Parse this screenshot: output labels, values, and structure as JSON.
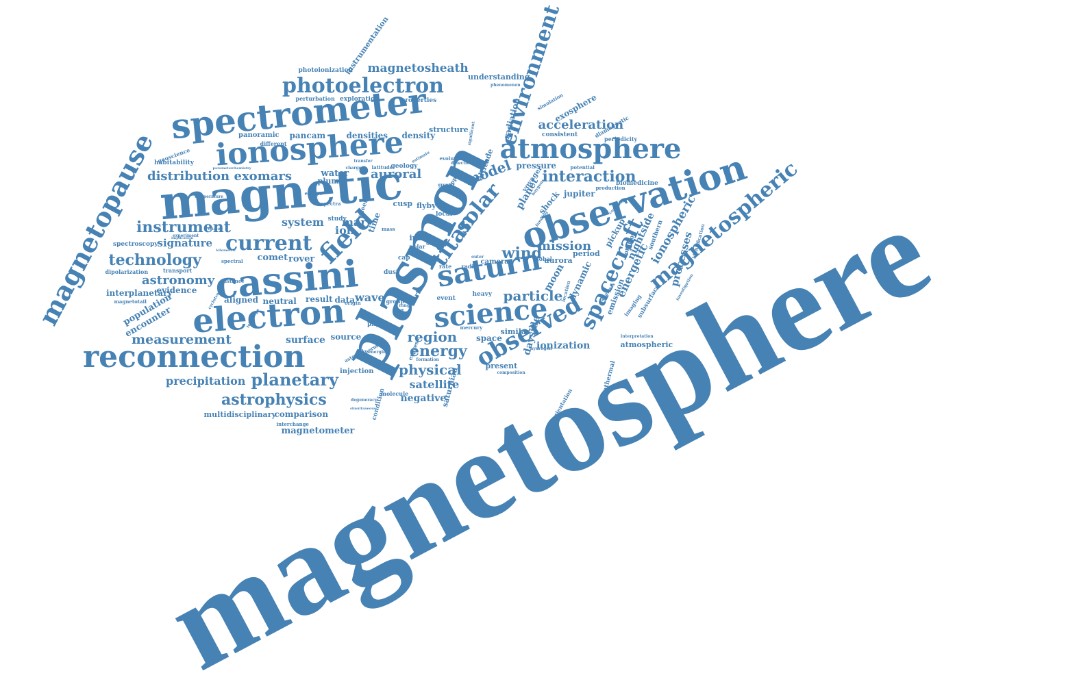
{
  "theme": {
    "word_color": "#4682b4",
    "background": "#ffffff"
  },
  "words": {
    "magnetosphere": "magnetosphere",
    "plasmon": "plasmon",
    "magnetic": "magnetic",
    "observation": "observation",
    "spectrometer": "spectrometer",
    "ionosphere": "ionosphere",
    "atmosphere": "atmosphere",
    "cassini": "cassini",
    "electron": "electron",
    "reconnection": "reconnection",
    "saturn": "saturn",
    "science": "science",
    "magnetopause": "magnetopause",
    "magnetospheric": "magnetospheric",
    "environment": "environment",
    "photoelectron": "photoelectron",
    "current": "current",
    "field": "field",
    "observed": "observed",
    "spacecraft": "spacecraft",
    "titan": "titan",
    "ionospheric": "ionospheric",
    "solar": "solar",
    "magnetosheath": "magnetosheath",
    "distribution": "distribution",
    "exomars": "exomars",
    "instrument": "instrument",
    "technology": "technology",
    "astronomy": "astronomy",
    "measurement": "measurement",
    "planetary": "planetary",
    "astrophysics": "astrophysics",
    "precipitation": "precipitation",
    "interaction": "interaction",
    "acceleration": "acceleration",
    "mission": "mission",
    "wind": "wind",
    "particle": "particle",
    "energy": "energy",
    "region": "region",
    "physical": "physical",
    "model": "model",
    "processes": "processes",
    "signature": "signature",
    "system": "system",
    "auroral": "auroral",
    "ion": "ion",
    "mar": "mar",
    "wave": "wave",
    "energetic": "energetic",
    "nightside": "nightside",
    "interplanetary": "interplanetary",
    "population": "population",
    "encounter": "encounter",
    "evidence": "evidence",
    "aligned": "aligned",
    "neutral": "neutral",
    "result": "result",
    "data": "data",
    "surface": "surface",
    "source": "source",
    "satellite": "satellite",
    "negative": "negative",
    "multidisciplinary": "multidisciplinary",
    "comparison": "comparison",
    "magnetometer": "magnetometer",
    "interchange": "interchange",
    "injection": "injection",
    "ionization": "ionization",
    "dayside": "dayside",
    "space": "space",
    "similar": "similar",
    "present": "present",
    "jupiter": "jupiter",
    "biomedicine": "biomedicine",
    "atmospheric": "atmospheric",
    "exosphere": "exosphere",
    "consistent": "consistent",
    "understanding": "understanding",
    "phenomenon": "phenomenon",
    "periodicity": "periodicity",
    "diagnamagnetic": "diamagnetic",
    "simulation": "simulation",
    "radiation": "radiation",
    "pressure": "pressure",
    "potential": "potential",
    "production": "production",
    "photoionization": "photoionization",
    "instrumentation": "instrumentation",
    "perturbation": "perturbation",
    "exploration": "exploration",
    "properties": "properties",
    "panoramic": "panoramic",
    "pancam": "pancam",
    "densities": "densities",
    "density": "density",
    "structure": "structure",
    "different": "different",
    "geoscience": "geoscience",
    "habitability": "habitability",
    "water": "water",
    "plume": "plume",
    "geology": "geology",
    "evolution": "evolution",
    "detection": "detection",
    "growth": "growth",
    "upper": "upper",
    "altitude": "altitude",
    "voyager": "voyager",
    "planet": "planet",
    "shock": "shock",
    "cusp": "cusp",
    "flyby": "flyby",
    "local": "local",
    "inner": "inner",
    "orbit": "orbit",
    "polar": "polar",
    "cap": "cap",
    "rate": "rate",
    "radio": "radio",
    "camera": "camera",
    "global": "global",
    "aurora": "aurora",
    "period": "period",
    "moon": "moon",
    "dynamic": "dynamic",
    "emission": "emission",
    "imaging": "imaging",
    "pickup": "pickup",
    "rotation": "rotation",
    "southern": "southern",
    "subsurface": "subsurface",
    "identification": "identification",
    "investigation": "investigation",
    "interpretation": "interpretation",
    "suprathermal": "suprathermal",
    "orientation": "orientation",
    "saturnian": "saturnian",
    "condition": "condition",
    "molecule": "molecule",
    "event": "event",
    "heavy": "heavy",
    "mercury": "mercury",
    "earth": "earth",
    "group": "group",
    "dust": "dust",
    "physic": "physic",
    "study": "study",
    "sheet": "sheet",
    "time": "time",
    "spectroscopy": "spectroscopy",
    "dipolarization": "dipolarization",
    "transport": "transport",
    "magnetotail": "magnetotail",
    "comet": "comet",
    "rover": "rover",
    "spectral": "spectral",
    "spectra": "spectra",
    "distance": "distance",
    "kilometric": "kilometric",
    "velocity": "velocity",
    "escape": "escape",
    "telescope": "telescope",
    "experiment": "experiment",
    "implication": "implication",
    "temperature": "temperature",
    "charge": "charge",
    "latitude": "latitude",
    "origin": "origin",
    "ring": "ring",
    "range": "range",
    "composition": "composition",
    "hydrogen": "hydrogen",
    "outer": "outer",
    "location": "location",
    "analysis": "analysis",
    "coupling": "coupling",
    "huygens": "huygens",
    "funding": "funding",
    "express": "express",
    "formation": "formation",
    "thermal": "thermal",
    "asteroid": "asteroid",
    "energies": "energies",
    "degeneracy": "degeneracy",
    "simultaneous": "simultaneous",
    "important": "important",
    "chemistry": "chemistry",
    "parameter": "parameter",
    "significant": "significant",
    "estimate": "estimate",
    "transfer": "transfer",
    "mass": "mass",
    "cyclotron": "cyclotron"
  }
}
